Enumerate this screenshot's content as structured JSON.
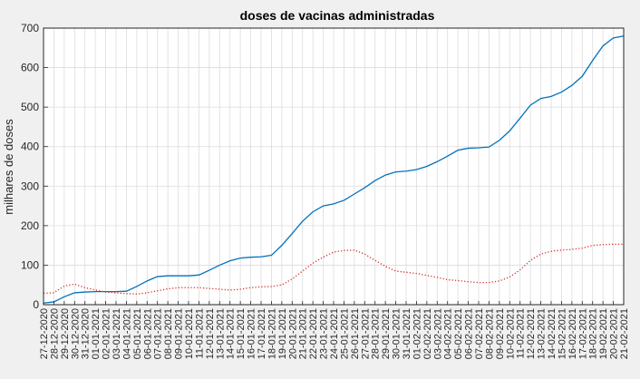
{
  "chart_data": {
    "type": "line",
    "title": "doses de vacinas administradas",
    "xlabel": "",
    "ylabel": "milhares de doses",
    "ylim": [
      0,
      700
    ],
    "yticks": [
      0,
      100,
      200,
      300,
      400,
      500,
      600,
      700
    ],
    "grid": true,
    "categories": [
      "27-12-2020",
      "28-12-2020",
      "29-12-2020",
      "30-12-2020",
      "31-12-2020",
      "01-01-2021",
      "02-01-2021",
      "03-01-2021",
      "04-01-2021",
      "05-01-2021",
      "06-01-2021",
      "07-01-2021",
      "08-01-2021",
      "09-01-2021",
      "10-01-2021",
      "11-01-2021",
      "12-01-2021",
      "13-01-2021",
      "14-01-2021",
      "15-01-2021",
      "16-01-2021",
      "17-01-2021",
      "18-01-2021",
      "19-01-2021",
      "20-01-2021",
      "21-01-2021",
      "22-01-2021",
      "23-01-2021",
      "24-01-2021",
      "25-01-2021",
      "26-01-2021",
      "27-01-2021",
      "28-01-2021",
      "29-01-2021",
      "30-01-2021",
      "31-01-2021",
      "01-02-2021",
      "02-02-2021",
      "03-02-2021",
      "04-02-2021",
      "05-02-2021",
      "06-02-2021",
      "07-02-2021",
      "08-02-2021",
      "09-02-2021",
      "10-02-2021",
      "11-02-2021",
      "12-02-2021",
      "13-02-2021",
      "14-02-2021",
      "15-02-2021",
      "16-02-2021",
      "17-02-2021",
      "18-02-2021",
      "19-02-2021",
      "20-02-2021",
      "21-02-2021"
    ],
    "series": [
      {
        "color": "#0072bd",
        "style": "solid",
        "values": [
          4,
          7,
          20,
          30,
          32,
          33,
          33,
          33,
          34,
          46,
          60,
          71,
          73,
          73,
          73,
          75,
          87,
          100,
          111,
          118,
          120,
          121,
          125,
          150,
          180,
          211,
          235,
          250,
          255,
          264,
          280,
          296,
          314,
          328,
          336,
          338,
          342,
          350,
          362,
          376,
          391,
          396,
          397,
          399,
          416,
          440,
          472,
          505,
          522,
          527,
          538,
          555,
          578,
          618,
          655,
          675,
          680
        ]
      },
      {
        "color": "#d62728",
        "style": "dotted",
        "values": [
          29,
          30,
          47,
          52,
          43,
          37,
          32,
          30,
          28,
          27,
          30,
          35,
          40,
          43,
          43,
          43,
          41,
          39,
          37,
          39,
          43,
          45,
          46,
          50,
          65,
          85,
          105,
          120,
          133,
          137,
          138,
          128,
          112,
          97,
          85,
          82,
          79,
          74,
          69,
          63,
          61,
          58,
          56,
          56,
          60,
          70,
          88,
          112,
          128,
          135,
          138,
          140,
          143,
          150,
          152,
          153,
          153
        ]
      }
    ]
  }
}
